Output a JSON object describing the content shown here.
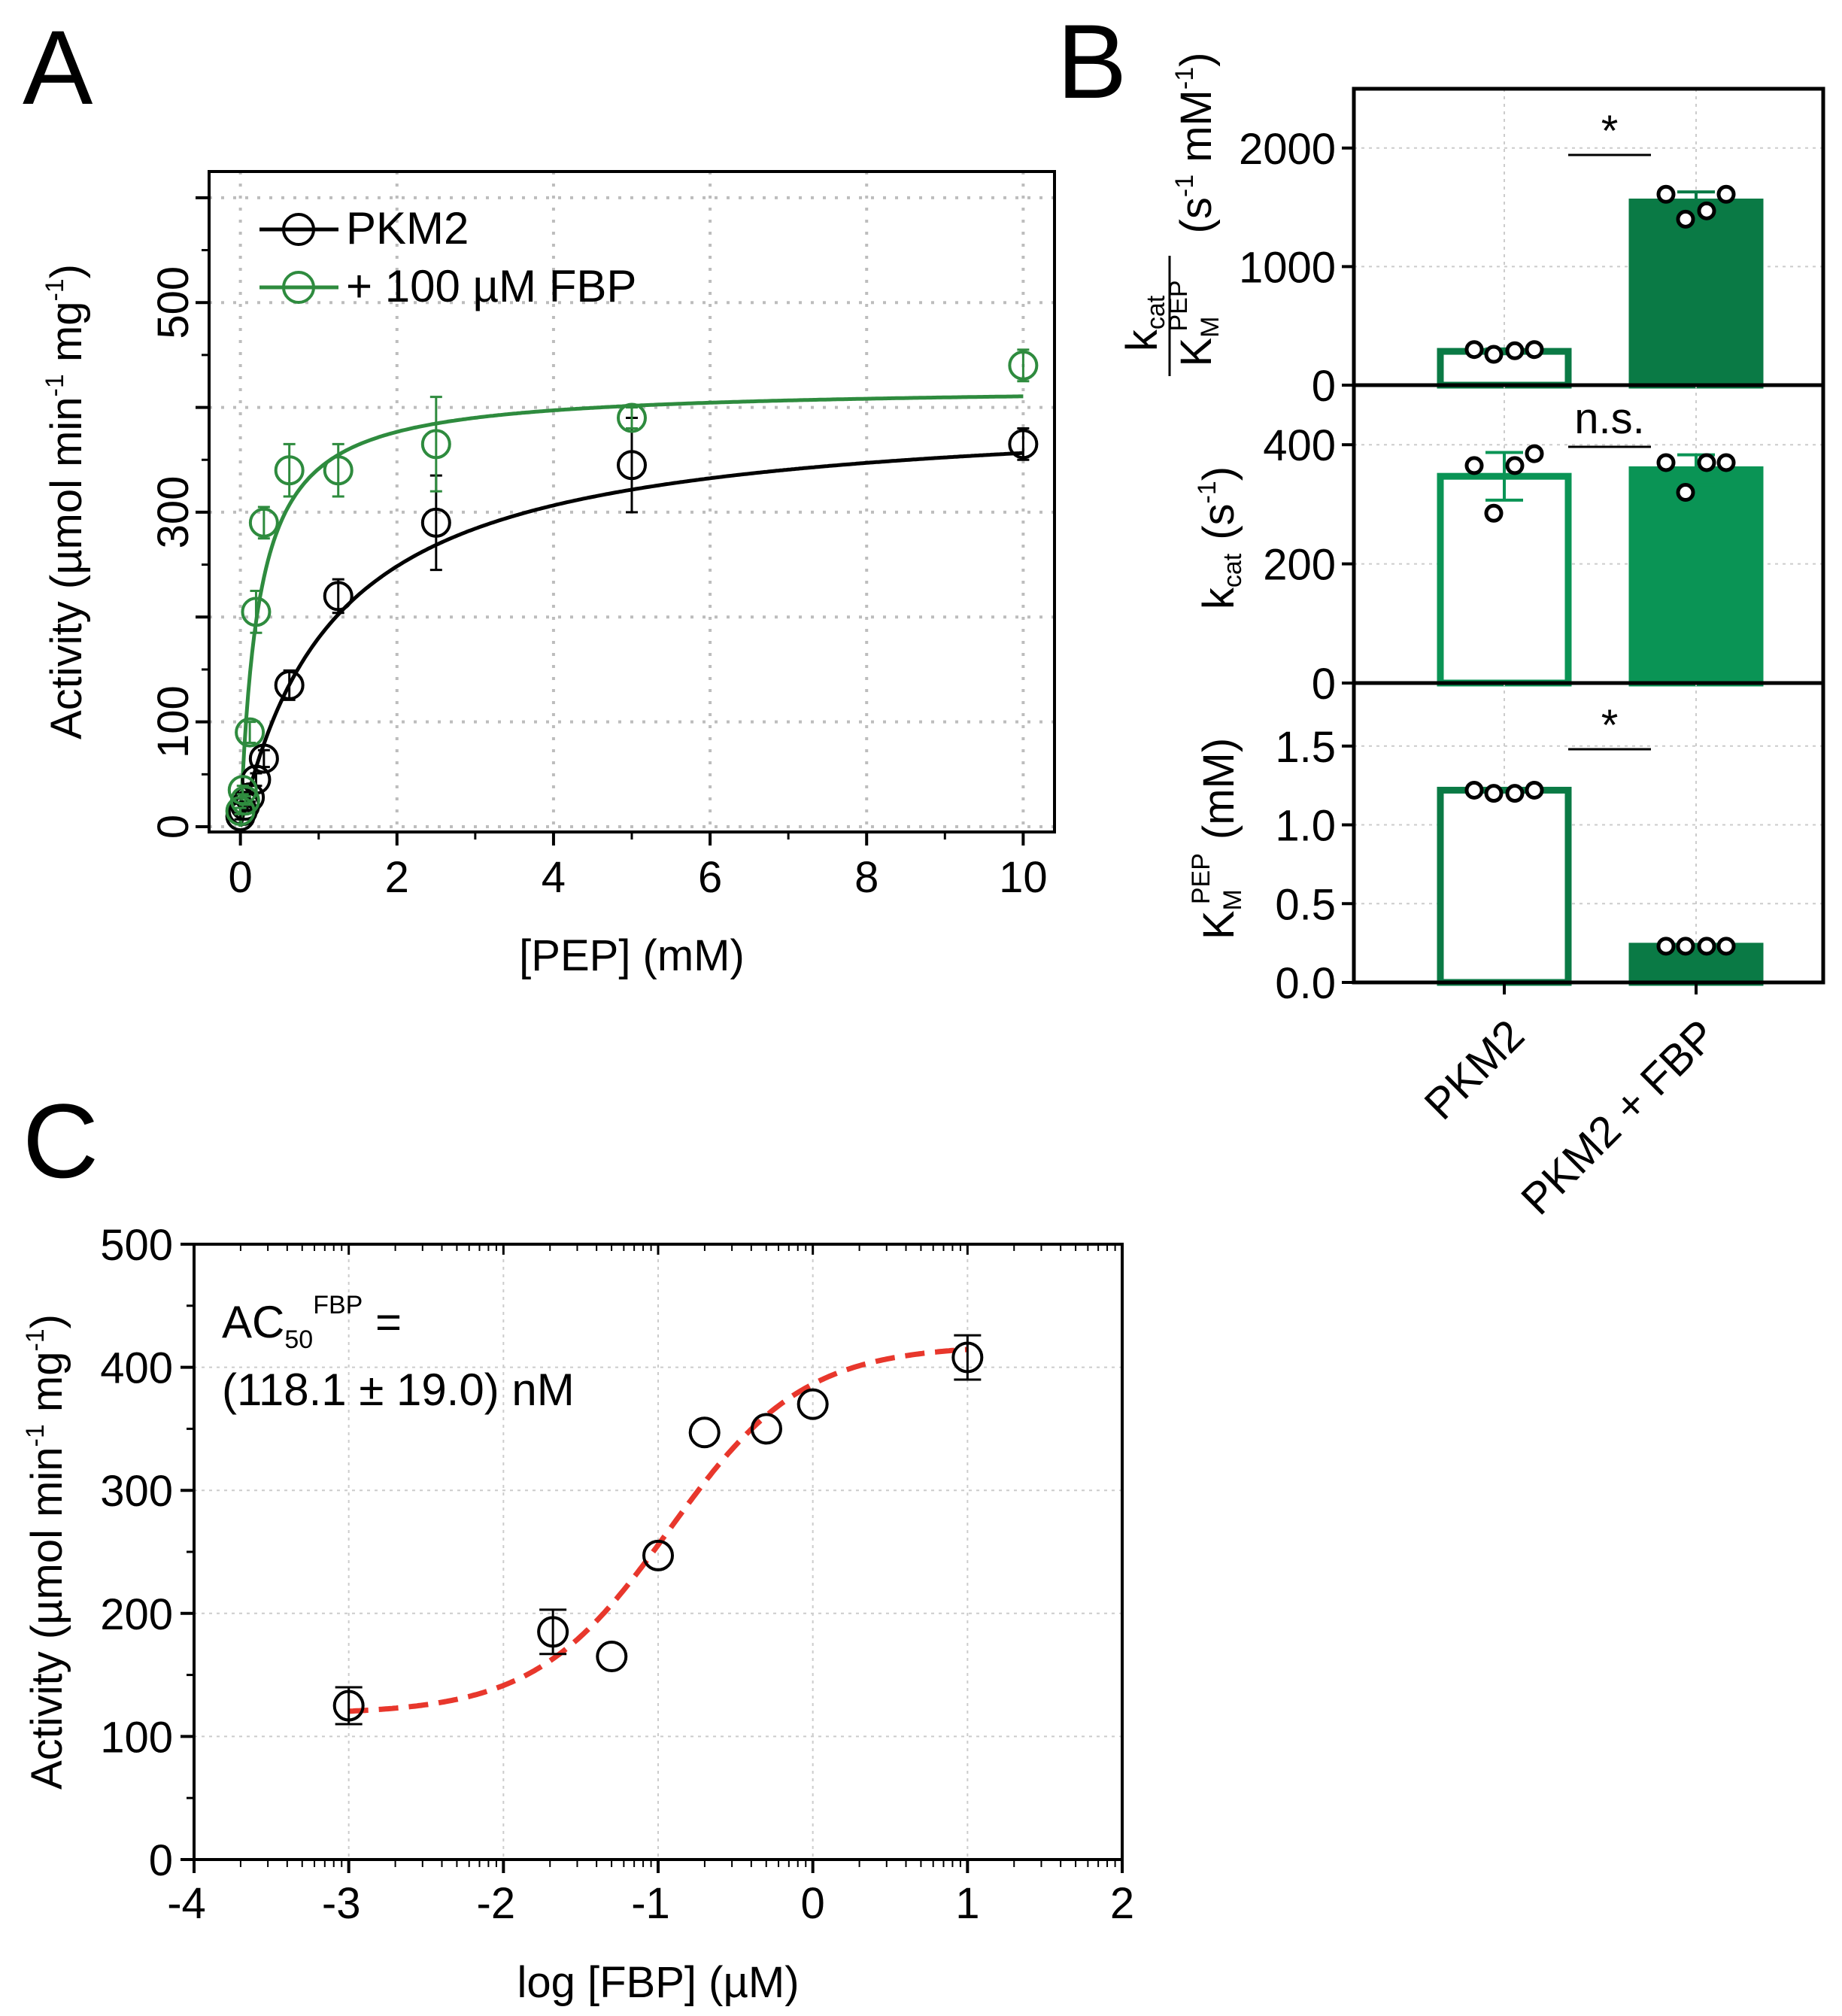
{
  "panels": {
    "a": "A",
    "b": "B",
    "c": "C"
  },
  "colors": {
    "pkm2": "#000000",
    "fbp": "#2e8b3e",
    "dark_green": "#0a7a45",
    "mid_green": "#0a9455",
    "fit_red": "#e8372c"
  },
  "chart_data": [
    {
      "id": "A",
      "type": "scatter",
      "xlabel": "[PEP] (mM)",
      "ylabel": {
        "main": "Activity (µmol  min",
        "sup1": "-1",
        "mid": " mg",
        "sup2": "-1",
        "end": ")"
      },
      "xlim": [
        -0.4,
        10.4
      ],
      "ylim": [
        -5,
        625
      ],
      "xticks": [
        0,
        2,
        4,
        6,
        8,
        10
      ],
      "yticks": [
        0,
        100,
        300,
        500
      ],
      "grid": true,
      "legend": "top-left",
      "series": [
        {
          "name": "PKM2",
          "color": "#000000",
          "x": [
            0,
            0.03,
            0.06,
            0.12,
            0.2,
            0.3,
            0.625,
            1.25,
            2.5,
            5,
            10
          ],
          "y": [
            10,
            15,
            20,
            28,
            45,
            65,
            135,
            220,
            290,
            345,
            365
          ],
          "err": [
            3,
            3,
            4,
            4,
            6,
            8,
            14,
            16,
            45,
            45,
            15
          ],
          "fit": {
            "vmax": 400,
            "km": 1.22
          }
        },
        {
          "name": "+ 100 µM FBP",
          "color": "#2e8b3e",
          "x": [
            0,
            0.03,
            0.06,
            0.12,
            0.2,
            0.3,
            0.625,
            1.25,
            2.5,
            5,
            10
          ],
          "y": [
            15,
            35,
            25,
            90,
            205,
            290,
            340,
            340,
            365,
            390,
            440
          ],
          "err": [
            3,
            4,
            4,
            10,
            20,
            15,
            25,
            25,
            45,
            10,
            15
          ],
          "fit": {
            "vmax": 420,
            "km": 0.23
          }
        }
      ]
    },
    {
      "id": "B",
      "type": "bar",
      "categories": [
        "PKM2",
        "PKM2 + FBP"
      ],
      "subplots": [
        {
          "metric": "kcat_over_km",
          "ylabel": {
            "k": "k",
            "cat": "cat",
            "K": "K",
            "M": "M",
            "PEP": "PEP",
            "units": "(s",
            "units_sup": "-1",
            "units_mid": " mM",
            "units_sup2": "-1",
            "units_end": ")"
          },
          "ylim": [
            0,
            2500
          ],
          "yticks": [
            0,
            1000,
            2000
          ],
          "values": [
            285,
            1545
          ],
          "errors": [
            20,
            85
          ],
          "points": [
            [
              300,
              260,
              290,
              300
            ],
            [
              1610,
              1400,
              1470,
              1610
            ]
          ],
          "significance": "*"
        },
        {
          "metric": "kcat",
          "ylabel": {
            "k": "k",
            "cat": "cat",
            "units": "(s",
            "units_sup": "-1",
            "units_end": ")"
          },
          "ylim": [
            0,
            500
          ],
          "yticks": [
            0,
            200,
            400
          ],
          "values": [
            347,
            358
          ],
          "errors": [
            40,
            25
          ],
          "points": [
            [
              365,
              285,
              365,
              385
            ],
            [
              370,
              320,
              370,
              370
            ]
          ],
          "significance": "n.s."
        },
        {
          "metric": "km",
          "ylabel": {
            "K": "K",
            "M": "M",
            "PEP": "PEP",
            "units": "(mM)"
          },
          "ylim": [
            0,
            1.9
          ],
          "yticks": [
            0.0,
            0.5,
            1.0,
            1.5
          ],
          "ytick_labels": [
            "0.0",
            "0.5",
            "1.0",
            "1.5"
          ],
          "values": [
            1.22,
            0.23
          ],
          "errors": [
            0.01,
            0.01
          ],
          "points": [
            [
              1.22,
              1.2,
              1.2,
              1.22
            ],
            [
              0.23,
              0.23,
              0.23,
              0.23
            ]
          ],
          "significance": "*"
        }
      ]
    },
    {
      "id": "C",
      "type": "scatter",
      "xlabel": "log [FBP] (µM)",
      "ylabel": {
        "main": "Activity (µmol min",
        "sup1": "-1",
        "mid": " mg",
        "sup2": "-1",
        "end": ")"
      },
      "xlim": [
        -4,
        2
      ],
      "ylim": [
        0,
        500
      ],
      "xticks": [
        -4,
        -3,
        -2,
        -1,
        0,
        1,
        2
      ],
      "yticks": [
        0,
        100,
        200,
        300,
        400,
        500
      ],
      "grid": true,
      "annotation": {
        "line1_main": "AC",
        "line1_sub": "50",
        "line1_sup": "FBP",
        "line1_end": " =",
        "line2": "(118.1 ± 19.0) nM"
      },
      "series": [
        {
          "color": "#000000",
          "x": [
            -3,
            -1.68,
            -1.3,
            -1,
            -0.7,
            -0.3,
            0,
            1
          ],
          "y": [
            125,
            185,
            165,
            247,
            347,
            350,
            370,
            408
          ],
          "err": [
            15,
            18,
            0,
            0,
            0,
            0,
            0,
            18
          ]
        }
      ],
      "fit": {
        "color": "#e8372c",
        "bottom": 118,
        "top": 418,
        "log_ac50": -0.928,
        "hill": 1.0,
        "x_from": -3,
        "x_to": 1
      }
    }
  ]
}
